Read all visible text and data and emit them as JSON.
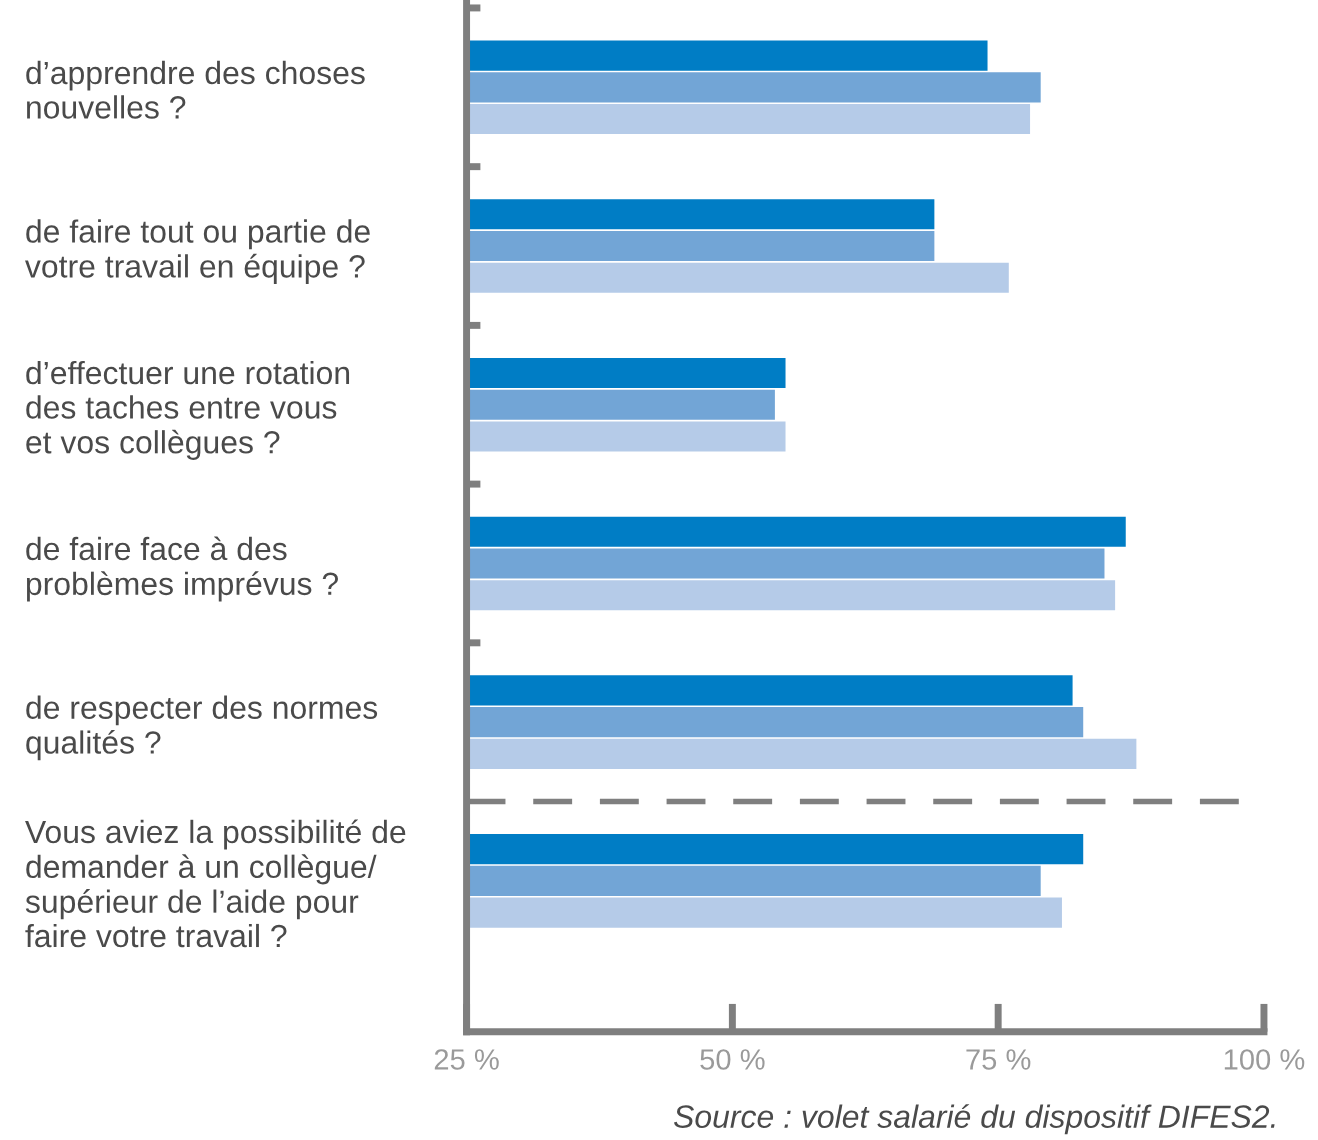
{
  "chart_data": {
    "type": "bar",
    "orientation": "horizontal",
    "categories": [
      "d’apprendre des choses\nnouvelles ?",
      "de faire tout ou partie de\nvotre travail en équipe ?",
      "d’effectuer une rotation\ndes taches entre vous\net vos collègues ?",
      "de faire face à des\nproblèmes imprévus ?",
      "de respecter des normes\nqualités ?",
      "Vous aviez la possibilité de\ndemander à un collègue/\nsupérieur de l’aide pour\nfaire votre travail ?"
    ],
    "series": [
      {
        "color": "#007dc5",
        "values": [
          74,
          69,
          55,
          87,
          82,
          83
        ]
      },
      {
        "color": "#72a5d6",
        "values": [
          79,
          69,
          54,
          85,
          83,
          79
        ]
      },
      {
        "color": "#b5cbe8",
        "values": [
          78,
          76,
          55,
          86,
          88,
          81
        ]
      }
    ],
    "xlim": [
      25,
      100
    ],
    "xticks": [
      {
        "value": 25,
        "label": "25 %"
      },
      {
        "value": 50,
        "label": "50 %"
      },
      {
        "value": 75,
        "label": "75 %"
      },
      {
        "value": 100,
        "label": "100 %"
      }
    ],
    "grid": false,
    "legend": false,
    "annotations": [
      "Source : volet salarié du dispositif DIFES2."
    ]
  }
}
